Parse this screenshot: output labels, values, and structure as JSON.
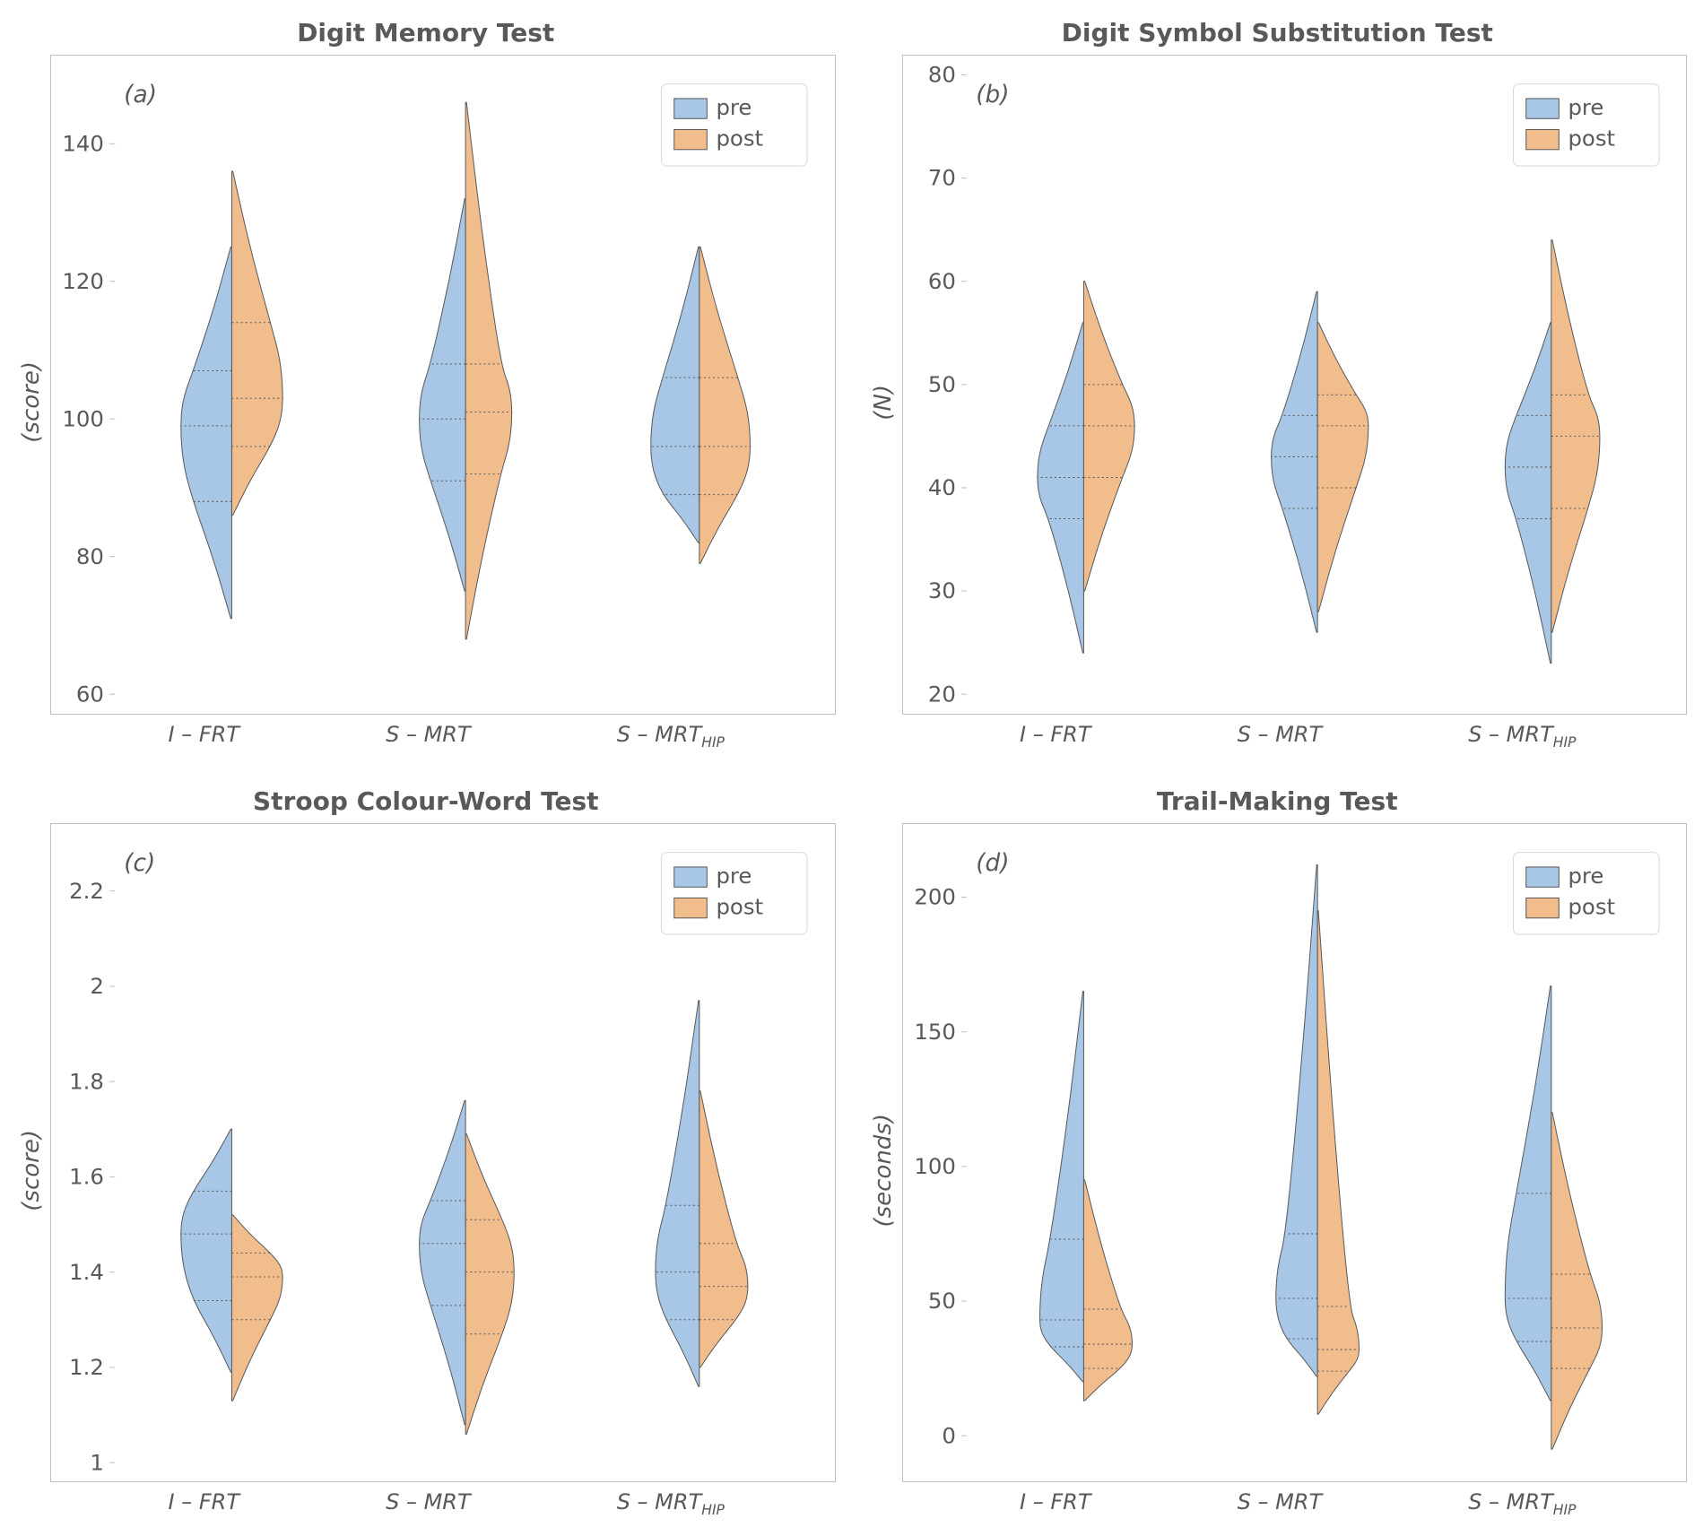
{
  "colors": {
    "pre": "#a8c6e6",
    "post": "#f2bd8c",
    "axis": "#bfbfbf",
    "text": "#595959",
    "legend_border": "#d9d9d9",
    "bg": "#ffffff"
  },
  "legend": {
    "pre": "pre",
    "post": "post"
  },
  "categories": [
    "I – FRT",
    "S – MRT",
    "S – MRT_HIP"
  ],
  "panels": [
    {
      "id": "a",
      "letter": "(a)",
      "title": "Digit Memory Test",
      "ylabel": "(score)",
      "ylim": [
        60,
        150
      ],
      "yticks": [
        60,
        80,
        100,
        120,
        140
      ],
      "violins": [
        {
          "cat": 0,
          "side": "pre",
          "min": 71,
          "q1": 88,
          "med": 99,
          "q3": 107,
          "max": 125,
          "width": 0.44
        },
        {
          "cat": 0,
          "side": "post",
          "min": 86,
          "q1": 96,
          "med": 103,
          "q3": 114,
          "max": 136,
          "width": 0.44
        },
        {
          "cat": 1,
          "side": "pre",
          "min": 75,
          "q1": 91,
          "med": 100,
          "q3": 108,
          "max": 132,
          "width": 0.4
        },
        {
          "cat": 1,
          "side": "post",
          "min": 68,
          "q1": 92,
          "med": 101,
          "q3": 108,
          "max": 146,
          "width": 0.4
        },
        {
          "cat": 2,
          "side": "pre",
          "min": 82,
          "q1": 89,
          "med": 96,
          "q3": 106,
          "max": 125,
          "width": 0.42
        },
        {
          "cat": 2,
          "side": "post",
          "min": 79,
          "q1": 89,
          "med": 96,
          "q3": 106,
          "max": 125,
          "width": 0.44
        }
      ]
    },
    {
      "id": "b",
      "letter": "(b)",
      "title": "Digit Symbol Substitution Test",
      "ylabel": "(N)",
      "ylim": [
        20,
        80
      ],
      "yticks": [
        20,
        30,
        40,
        50,
        60,
        70,
        80
      ],
      "violins": [
        {
          "cat": 0,
          "side": "pre",
          "min": 24,
          "q1": 37,
          "med": 41,
          "q3": 46,
          "max": 56,
          "width": 0.4
        },
        {
          "cat": 0,
          "side": "post",
          "min": 30,
          "q1": 41,
          "med": 46,
          "q3": 50,
          "max": 60,
          "width": 0.44
        },
        {
          "cat": 1,
          "side": "pre",
          "min": 26,
          "q1": 38,
          "med": 43,
          "q3": 47,
          "max": 59,
          "width": 0.4
        },
        {
          "cat": 1,
          "side": "post",
          "min": 28,
          "q1": 40,
          "med": 46,
          "q3": 49,
          "max": 56,
          "width": 0.44
        },
        {
          "cat": 2,
          "side": "pre",
          "min": 23,
          "q1": 37,
          "med": 42,
          "q3": 47,
          "max": 56,
          "width": 0.4
        },
        {
          "cat": 2,
          "side": "post",
          "min": 26,
          "q1": 38,
          "med": 45,
          "q3": 49,
          "max": 64,
          "width": 0.42
        }
      ]
    },
    {
      "id": "c",
      "letter": "(c)",
      "title": "Stroop Colour-Word Test",
      "ylabel": "(score)",
      "ylim": [
        1.0,
        2.3
      ],
      "yticks": [
        1.0,
        1.2,
        1.4,
        1.6,
        1.8,
        2.0,
        2.2
      ],
      "violins": [
        {
          "cat": 0,
          "side": "pre",
          "min": 1.19,
          "q1": 1.34,
          "med": 1.48,
          "q3": 1.57,
          "max": 1.7,
          "width": 0.44
        },
        {
          "cat": 0,
          "side": "post",
          "min": 1.13,
          "q1": 1.3,
          "med": 1.39,
          "q3": 1.44,
          "max": 1.52,
          "width": 0.44
        },
        {
          "cat": 1,
          "side": "pre",
          "min": 1.08,
          "q1": 1.33,
          "med": 1.46,
          "q3": 1.55,
          "max": 1.76,
          "width": 0.4
        },
        {
          "cat": 1,
          "side": "post",
          "min": 1.06,
          "q1": 1.27,
          "med": 1.4,
          "q3": 1.51,
          "max": 1.69,
          "width": 0.42
        },
        {
          "cat": 2,
          "side": "pre",
          "min": 1.16,
          "q1": 1.3,
          "med": 1.4,
          "q3": 1.54,
          "max": 1.97,
          "width": 0.38
        },
        {
          "cat": 2,
          "side": "post",
          "min": 1.2,
          "q1": 1.3,
          "med": 1.37,
          "q3": 1.46,
          "max": 1.78,
          "width": 0.42
        }
      ]
    },
    {
      "id": "d",
      "letter": "(d)",
      "title": "Trail-Making Test",
      "ylabel": "(seconds)",
      "ylim": [
        -10,
        220
      ],
      "yticks": [
        0,
        50,
        100,
        150,
        200
      ],
      "violins": [
        {
          "cat": 0,
          "side": "pre",
          "min": 20,
          "q1": 33,
          "med": 43,
          "q3": 73,
          "max": 165,
          "width": 0.38
        },
        {
          "cat": 0,
          "side": "post",
          "min": 13,
          "q1": 25,
          "med": 34,
          "q3": 47,
          "max": 95,
          "width": 0.42
        },
        {
          "cat": 1,
          "side": "pre",
          "min": 22,
          "q1": 36,
          "med": 51,
          "q3": 75,
          "max": 212,
          "width": 0.36
        },
        {
          "cat": 1,
          "side": "post",
          "min": 8,
          "q1": 24,
          "med": 32,
          "q3": 48,
          "max": 195,
          "width": 0.36
        },
        {
          "cat": 2,
          "side": "pre",
          "min": 13,
          "q1": 35,
          "med": 51,
          "q3": 90,
          "max": 167,
          "width": 0.4
        },
        {
          "cat": 2,
          "side": "post",
          "min": -5,
          "q1": 25,
          "med": 40,
          "q3": 60,
          "max": 120,
          "width": 0.44
        }
      ]
    }
  ]
}
